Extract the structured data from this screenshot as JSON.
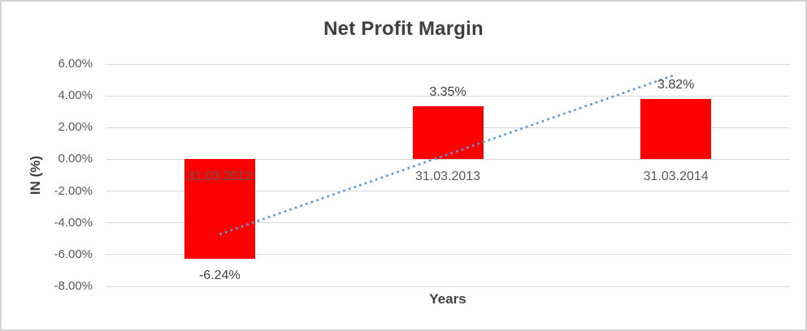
{
  "chart_data": {
    "type": "bar",
    "title": "Net Profit Margin",
    "xlabel": "Years",
    "ylabel": "IN (%)",
    "categories": [
      "31.03.2012",
      "31.03.2013",
      "31.03.2014"
    ],
    "values": [
      -6.24,
      3.35,
      3.82
    ],
    "data_labels": [
      "-6.24%",
      "3.35%",
      "3.82%"
    ],
    "ylim": [
      -8,
      6
    ],
    "yticks": [
      6,
      4,
      2,
      0,
      -2,
      -4,
      -6,
      -8
    ],
    "ytick_labels": [
      "6.00%",
      "4.00%",
      "2.00%",
      "0.00%",
      "-2.00%",
      "-4.00%",
      "-6.00%",
      "-8.00%"
    ],
    "grid": true,
    "legend": "none",
    "trendline": {
      "type": "linear",
      "dash": "dotted",
      "start_value": -4.72,
      "end_value": 5.34
    },
    "colors": {
      "bar": "#ff0000",
      "trendline": "#5b9bd5",
      "gridline": "#d9d9d9",
      "axis_text": "#595959",
      "title_text": "#3f3f3f",
      "border": "#d4d4d4"
    }
  }
}
